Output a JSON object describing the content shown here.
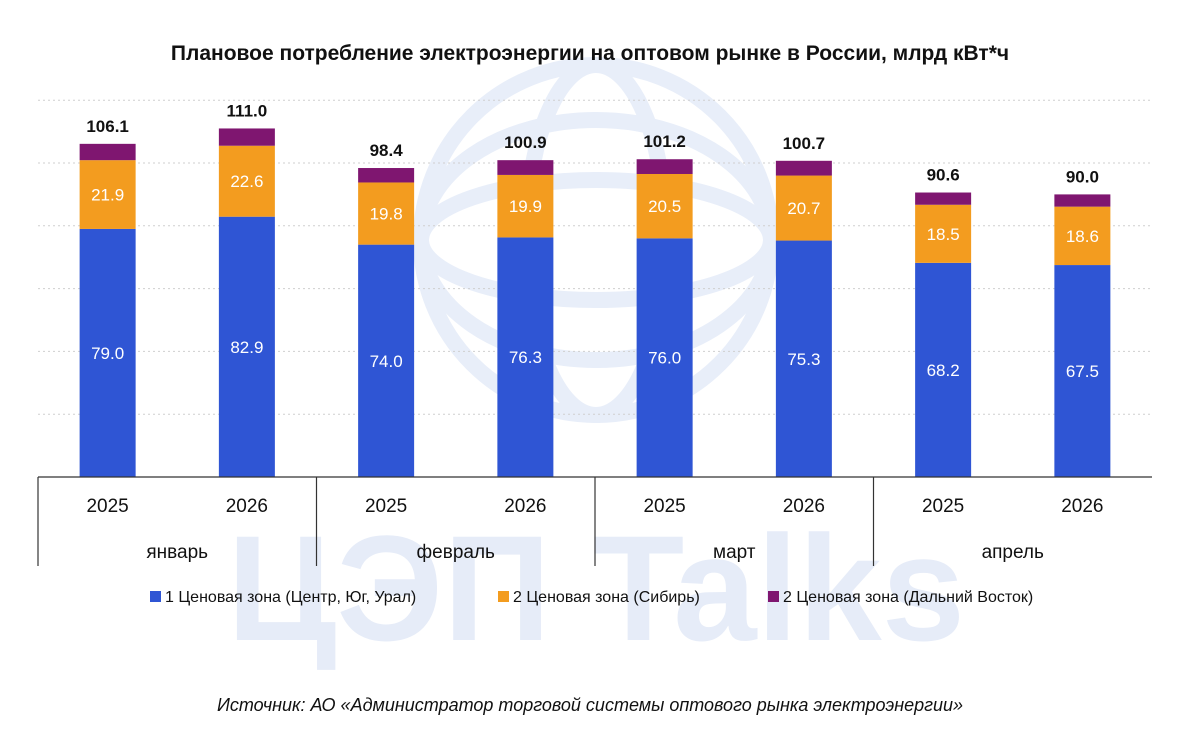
{
  "chart_data": {
    "type": "bar",
    "stacked": true,
    "title": "Плановое потребление электроэнергии на оптовом рынке в России, млрд кВт*ч",
    "groups": [
      "январь",
      "февраль",
      "март",
      "апрель"
    ],
    "categories": [
      "2025",
      "2026",
      "2025",
      "2026",
      "2025",
      "2026",
      "2025",
      "2026"
    ],
    "category_groups": [
      0,
      0,
      1,
      1,
      2,
      2,
      3,
      3
    ],
    "series": [
      {
        "name": "1 Ценовая зона (Центр, Юг, Урал)",
        "color": "#2f55d4",
        "values": [
          79.0,
          82.9,
          74.0,
          76.3,
          76.0,
          75.3,
          68.2,
          67.5
        ]
      },
      {
        "name": "2 Ценовая зона (Сибирь)",
        "color": "#f39c1f",
        "values": [
          21.9,
          22.6,
          19.8,
          19.9,
          20.5,
          20.7,
          18.5,
          18.6
        ]
      },
      {
        "name": "2 Ценовая зона (Дальний Восток)",
        "color": "#7f1670",
        "values": [
          5.2,
          5.5,
          4.6,
          4.7,
          4.7,
          4.7,
          3.9,
          3.9
        ]
      }
    ],
    "totals": [
      "106.1",
      "111.0",
      "98.4",
      "100.9",
      "101.2",
      "100.7",
      "90.6",
      "90.0"
    ],
    "segment_labels": [
      [
        "79.0",
        "82.9",
        "74.0",
        "76.3",
        "76.0",
        "75.3",
        "68.2",
        "67.5"
      ],
      [
        "21.9",
        "22.6",
        "19.8",
        "19.9",
        "20.5",
        "20.7",
        "18.5",
        "18.6"
      ]
    ],
    "ylim": [
      0,
      120
    ],
    "grid": true,
    "legend_position": "bottom"
  },
  "source": "Источник: АО «Администратор торговой системы оптового рынка электроэнергии»",
  "watermark": "ЦЭП Talks"
}
